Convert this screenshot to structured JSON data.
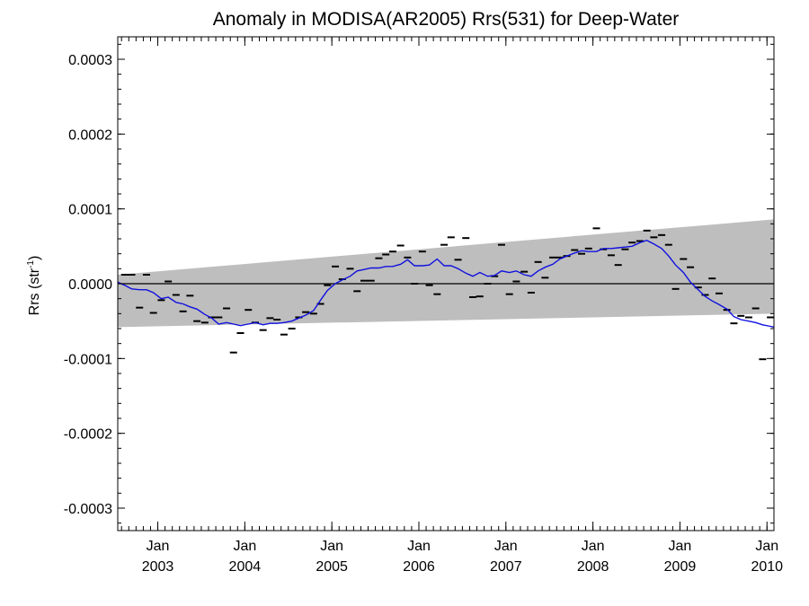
{
  "chart_data": {
    "type": "scatter",
    "title": "Anomaly in MODISA(AR2005) Rrs(531) for Deep-Water",
    "ylabel": "Rrs (str",
    "ylabel_sup": "-1",
    "ylabel_end": ")",
    "xlim": [
      2002.54,
      2010.08
    ],
    "ylim": [
      -0.00033,
      0.00033
    ],
    "y_ticks": [
      -0.0003,
      -0.0002,
      -0.0001,
      0.0,
      0.0001,
      0.0002,
      0.0003
    ],
    "y_tick_labels": [
      "-0.0003",
      "-0.0002",
      "-0.0001",
      "0.0000",
      "0.0001",
      "0.0002",
      "0.0003"
    ],
    "x_ticks": [
      {
        "x": 2003.0,
        "month": "Jan",
        "year": "2003"
      },
      {
        "x": 2004.0,
        "month": "Jan",
        "year": "2004"
      },
      {
        "x": 2005.0,
        "month": "Jan",
        "year": "2005"
      },
      {
        "x": 2006.0,
        "month": "Jan",
        "year": "2006"
      },
      {
        "x": 2007.0,
        "month": "Jan",
        "year": "2007"
      },
      {
        "x": 2008.0,
        "month": "Jan",
        "year": "2008"
      },
      {
        "x": 2009.0,
        "month": "Jan",
        "year": "2009"
      },
      {
        "x": 2010.0,
        "month": "Jan",
        "year": "2010"
      }
    ],
    "grid": false,
    "zero_line": true,
    "band": {
      "x": [
        2002.54,
        2010.08
      ],
      "lower": [
        -5.8e-05,
        -4e-05
      ],
      "upper": [
        1.2e-05,
        8.6e-05
      ],
      "color": "#bebebe"
    },
    "series": [
      {
        "type": "scatter",
        "marker": "dash",
        "color": "#000000",
        "points": [
          [
            2002.62,
            1.2e-05
          ],
          [
            2002.7,
            1.2e-05
          ],
          [
            2002.79,
            -3.2e-05
          ],
          [
            2002.87,
            1.2e-05
          ],
          [
            2002.95,
            -3.9e-05
          ],
          [
            2003.04,
            -2.2e-05
          ],
          [
            2003.12,
            3e-06
          ],
          [
            2003.21,
            -1.5e-05
          ],
          [
            2003.29,
            -3.7e-05
          ],
          [
            2003.37,
            -1.6e-05
          ],
          [
            2003.45,
            -5e-05
          ],
          [
            2003.54,
            -5.2e-05
          ],
          [
            2003.62,
            -4.5e-05
          ],
          [
            2003.7,
            -4.5e-05
          ],
          [
            2003.79,
            -3.3e-05
          ],
          [
            2003.87,
            -9.2e-05
          ],
          [
            2003.95,
            -6.6e-05
          ],
          [
            2004.04,
            -3.5e-05
          ],
          [
            2004.12,
            -5.2e-05
          ],
          [
            2004.21,
            -6.2e-05
          ],
          [
            2004.29,
            -4.6e-05
          ],
          [
            2004.37,
            -4.8e-05
          ],
          [
            2004.45,
            -6.8e-05
          ],
          [
            2004.54,
            -6e-05
          ],
          [
            2004.62,
            -4.5e-05
          ],
          [
            2004.7,
            -3.8e-05
          ],
          [
            2004.79,
            -4e-05
          ],
          [
            2004.87,
            -2.7e-05
          ],
          [
            2004.95,
            -2e-06
          ],
          [
            2005.04,
            2.3e-05
          ],
          [
            2005.12,
            6e-06
          ],
          [
            2005.21,
            2e-05
          ],
          [
            2005.29,
            -1e-05
          ],
          [
            2005.37,
            4e-06
          ],
          [
            2005.45,
            4e-06
          ],
          [
            2005.54,
            3.4e-05
          ],
          [
            2005.62,
            3.9e-05
          ],
          [
            2005.7,
            4.3e-05
          ],
          [
            2005.79,
            5.1e-05
          ],
          [
            2005.87,
            3.5e-05
          ],
          [
            2005.95,
            0.0
          ],
          [
            2006.04,
            4.3e-05
          ],
          [
            2006.12,
            -2e-06
          ],
          [
            2006.21,
            -1.4e-05
          ],
          [
            2006.29,
            5.2e-05
          ],
          [
            2006.37,
            6.2e-05
          ],
          [
            2006.45,
            3.2e-05
          ],
          [
            2006.54,
            6.1e-05
          ],
          [
            2006.62,
            -1.8e-05
          ],
          [
            2006.7,
            -1.7e-05
          ],
          [
            2006.79,
            0.0
          ],
          [
            2006.87,
            1e-05
          ],
          [
            2006.95,
            5.2e-05
          ],
          [
            2007.04,
            -1.4e-05
          ],
          [
            2007.12,
            3e-06
          ],
          [
            2007.21,
            1.6e-05
          ],
          [
            2007.29,
            -1.2e-05
          ],
          [
            2007.37,
            2.9e-05
          ],
          [
            2007.45,
            8e-06
          ],
          [
            2007.54,
            3.5e-05
          ],
          [
            2007.62,
            3.5e-05
          ],
          [
            2007.7,
            3.7e-05
          ],
          [
            2007.79,
            4.5e-05
          ],
          [
            2007.87,
            4e-05
          ],
          [
            2007.95,
            4.7e-05
          ],
          [
            2008.04,
            7.4e-05
          ],
          [
            2008.12,
            4.6e-05
          ],
          [
            2008.21,
            3.8e-05
          ],
          [
            2008.29,
            2.5e-05
          ],
          [
            2008.37,
            4.6e-05
          ],
          [
            2008.45,
            5.5e-05
          ],
          [
            2008.54,
            5.7e-05
          ],
          [
            2008.62,
            7.1e-05
          ],
          [
            2008.7,
            6.2e-05
          ],
          [
            2008.79,
            6.5e-05
          ],
          [
            2008.87,
            5.2e-05
          ],
          [
            2008.95,
            -7e-06
          ],
          [
            2009.04,
            3.3e-05
          ],
          [
            2009.12,
            2.2e-05
          ],
          [
            2009.21,
            -5e-06
          ],
          [
            2009.29,
            -1.5e-05
          ],
          [
            2009.37,
            7e-06
          ],
          [
            2009.45,
            -1.3e-05
          ],
          [
            2009.54,
            -3.5e-05
          ],
          [
            2009.62,
            -5.3e-05
          ],
          [
            2009.7,
            -4.3e-05
          ],
          [
            2009.79,
            -4.5e-05
          ],
          [
            2009.87,
            -3.3e-05
          ],
          [
            2009.95,
            -0.000101
          ],
          [
            2010.04,
            -4.5e-05
          ]
        ]
      },
      {
        "type": "line",
        "color": "#1010e0",
        "points": [
          [
            2002.54,
            2e-06
          ],
          [
            2002.62,
            -2e-06
          ],
          [
            2002.7,
            -7e-06
          ],
          [
            2002.79,
            -8e-06
          ],
          [
            2002.87,
            -8e-06
          ],
          [
            2002.95,
            -1.2e-05
          ],
          [
            2003.04,
            -2e-05
          ],
          [
            2003.12,
            -1.8e-05
          ],
          [
            2003.21,
            -2.5e-05
          ],
          [
            2003.29,
            -2.7e-05
          ],
          [
            2003.37,
            -3.1e-05
          ],
          [
            2003.45,
            -3.4e-05
          ],
          [
            2003.54,
            -4.1e-05
          ],
          [
            2003.62,
            -4.6e-05
          ],
          [
            2003.7,
            -5.4e-05
          ],
          [
            2003.79,
            -5.2e-05
          ],
          [
            2003.87,
            -5.4e-05
          ],
          [
            2003.95,
            -5.6e-05
          ],
          [
            2004.04,
            -5.4e-05
          ],
          [
            2004.12,
            -5.2e-05
          ],
          [
            2004.21,
            -5.5e-05
          ],
          [
            2004.29,
            -5.3e-05
          ],
          [
            2004.37,
            -5.3e-05
          ],
          [
            2004.45,
            -5.2e-05
          ],
          [
            2004.54,
            -5e-05
          ],
          [
            2004.62,
            -4.6e-05
          ],
          [
            2004.7,
            -4.2e-05
          ],
          [
            2004.79,
            -3.6e-05
          ],
          [
            2004.87,
            -2.2e-05
          ],
          [
            2004.95,
            -9e-06
          ],
          [
            2005.04,
            0.0
          ],
          [
            2005.12,
            5e-06
          ],
          [
            2005.21,
            1e-05
          ],
          [
            2005.29,
            1.7e-05
          ],
          [
            2005.37,
            1.9e-05
          ],
          [
            2005.45,
            2.1e-05
          ],
          [
            2005.54,
            2.1e-05
          ],
          [
            2005.62,
            2.3e-05
          ],
          [
            2005.7,
            2.3e-05
          ],
          [
            2005.79,
            2.6e-05
          ],
          [
            2005.87,
            3.2e-05
          ],
          [
            2005.95,
            2.4e-05
          ],
          [
            2006.04,
            2.4e-05
          ],
          [
            2006.12,
            2.5e-05
          ],
          [
            2006.21,
            3.3e-05
          ],
          [
            2006.29,
            2.4e-05
          ],
          [
            2006.37,
            2.4e-05
          ],
          [
            2006.45,
            2e-05
          ],
          [
            2006.54,
            1.4e-05
          ],
          [
            2006.62,
            1e-05
          ],
          [
            2006.7,
            1.5e-05
          ],
          [
            2006.79,
            1e-05
          ],
          [
            2006.87,
            1.1e-05
          ],
          [
            2006.95,
            1.7e-05
          ],
          [
            2007.04,
            1.5e-05
          ],
          [
            2007.12,
            1.7e-05
          ],
          [
            2007.21,
            1.2e-05
          ],
          [
            2007.29,
            1e-05
          ],
          [
            2007.37,
            1.7e-05
          ],
          [
            2007.45,
            2.2e-05
          ],
          [
            2007.54,
            2.6e-05
          ],
          [
            2007.62,
            3.3e-05
          ],
          [
            2007.7,
            3.7e-05
          ],
          [
            2007.79,
            4.1e-05
          ],
          [
            2007.87,
            4.4e-05
          ],
          [
            2007.95,
            4.3e-05
          ],
          [
            2008.04,
            4.3e-05
          ],
          [
            2008.12,
            4.7e-05
          ],
          [
            2008.21,
            4.7e-05
          ],
          [
            2008.29,
            4.8e-05
          ],
          [
            2008.37,
            4.9e-05
          ],
          [
            2008.45,
            5e-05
          ],
          [
            2008.54,
            5.5e-05
          ],
          [
            2008.62,
            5.8e-05
          ],
          [
            2008.7,
            5.3e-05
          ],
          [
            2008.79,
            4.7e-05
          ],
          [
            2008.87,
            3.7e-05
          ],
          [
            2008.95,
            2.5e-05
          ],
          [
            2009.04,
            1.5e-05
          ],
          [
            2009.12,
            2e-06
          ],
          [
            2009.21,
            -8e-06
          ],
          [
            2009.29,
            -1.7e-05
          ],
          [
            2009.37,
            -2.3e-05
          ],
          [
            2009.45,
            -2.8e-05
          ],
          [
            2009.54,
            -3.4e-05
          ],
          [
            2009.62,
            -4.4e-05
          ],
          [
            2009.7,
            -4.8e-05
          ],
          [
            2009.79,
            -5e-05
          ],
          [
            2009.87,
            -5.2e-05
          ],
          [
            2009.95,
            -5.5e-05
          ],
          [
            2010.04,
            -5.7e-05
          ],
          [
            2010.08,
            -5.8e-05
          ]
        ]
      }
    ]
  }
}
